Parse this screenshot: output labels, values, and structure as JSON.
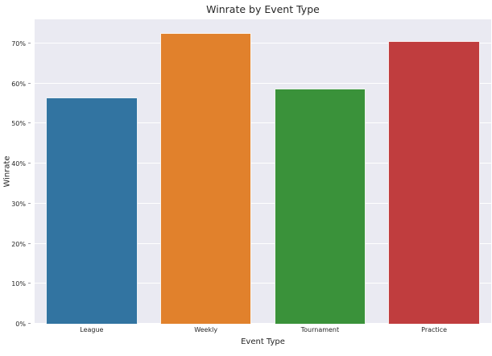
{
  "chart_data": {
    "type": "bar",
    "title": "Winrate by Event Type",
    "xlabel": "Event Type",
    "ylabel": "Winrate",
    "categories": [
      "League",
      "Weekly",
      "Tournament",
      "Practice"
    ],
    "values": [
      56.4,
      72.6,
      58.8,
      70.5
    ],
    "bar_colors": [
      "#3274a1",
      "#e1812c",
      "#3a923a",
      "#c03d3e"
    ],
    "bar_edge_color": "#ffffff",
    "ytick_values": [
      0,
      10,
      20,
      30,
      40,
      50,
      60,
      70
    ],
    "ytick_labels": [
      "0%",
      "10%",
      "20%",
      "30%",
      "40%",
      "50%",
      "60%",
      "70%"
    ],
    "ylim": [
      0,
      76
    ],
    "bar_width_fraction": 0.8,
    "grid": true,
    "grid_color": "#ffffff",
    "plot_background": "#eaeaf2",
    "figure_background": "#ffffff",
    "text_color": "#262626",
    "legend": null
  }
}
